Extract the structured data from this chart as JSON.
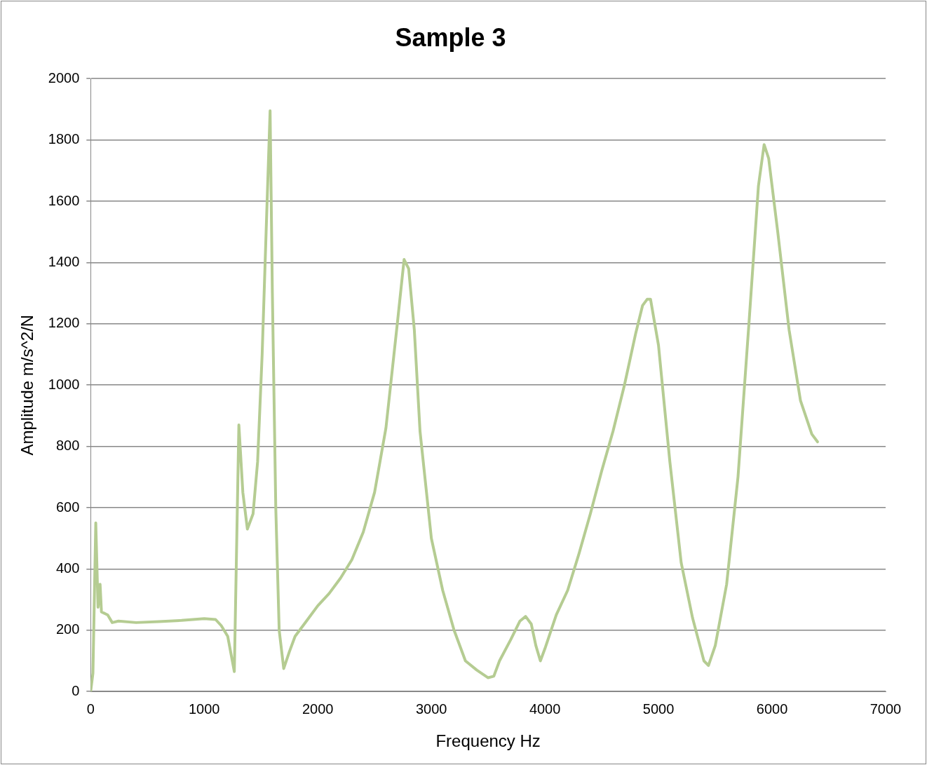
{
  "chart_data": {
    "type": "line",
    "title": "Sample 3",
    "xlabel": "Frequency Hz",
    "ylabel": "Amplitude m/s^2/N",
    "xlim": [
      0,
      7000
    ],
    "xticks": [
      0,
      1000,
      2000,
      3000,
      4000,
      5000,
      6000,
      7000
    ],
    "ylim": [
      0,
      2000
    ],
    "yticks": [
      0,
      200,
      400,
      600,
      800,
      1000,
      1200,
      1400,
      1600,
      1800,
      2000
    ],
    "grid": "y",
    "legend": false,
    "marker": "none",
    "line_style": "solid",
    "series": [
      {
        "color": "#b5cc92",
        "x": [
          0,
          20,
          45,
          65,
          83,
          95,
          150,
          190,
          245,
          400,
          600,
          800,
          1000,
          1100,
          1150,
          1207,
          1265,
          1305,
          1340,
          1380,
          1430,
          1470,
          1510,
          1545,
          1580,
          1600,
          1630,
          1660,
          1700,
          1750,
          1800,
          1900,
          2000,
          2100,
          2200,
          2300,
          2400,
          2500,
          2600,
          2700,
          2760,
          2800,
          2850,
          2900,
          3000,
          3100,
          3200,
          3300,
          3400,
          3500,
          3550,
          3600,
          3700,
          3780,
          3830,
          3880,
          3920,
          3960,
          4000,
          4100,
          4200,
          4300,
          4400,
          4500,
          4600,
          4700,
          4800,
          4860,
          4900,
          4930,
          5000,
          5100,
          5200,
          5300,
          5400,
          5440,
          5500,
          5600,
          5700,
          5800,
          5880,
          5930,
          5970,
          6050,
          6150,
          6250,
          6350,
          6400
        ],
        "values": [
          0,
          60,
          550,
          275,
          350,
          260,
          250,
          225,
          230,
          225,
          228,
          232,
          238,
          235,
          215,
          180,
          65,
          870,
          650,
          530,
          580,
          750,
          1100,
          1500,
          1895,
          1300,
          600,
          200,
          75,
          130,
          180,
          230,
          280,
          320,
          370,
          430,
          520,
          650,
          860,
          1200,
          1410,
          1380,
          1180,
          850,
          500,
          330,
          200,
          100,
          70,
          45,
          50,
          100,
          170,
          230,
          245,
          220,
          150,
          100,
          140,
          250,
          330,
          450,
          580,
          720,
          850,
          1000,
          1170,
          1260,
          1280,
          1280,
          1130,
          750,
          420,
          240,
          100,
          85,
          150,
          350,
          700,
          1220,
          1650,
          1785,
          1740,
          1500,
          1180,
          950,
          840,
          815
        ]
      }
    ]
  }
}
